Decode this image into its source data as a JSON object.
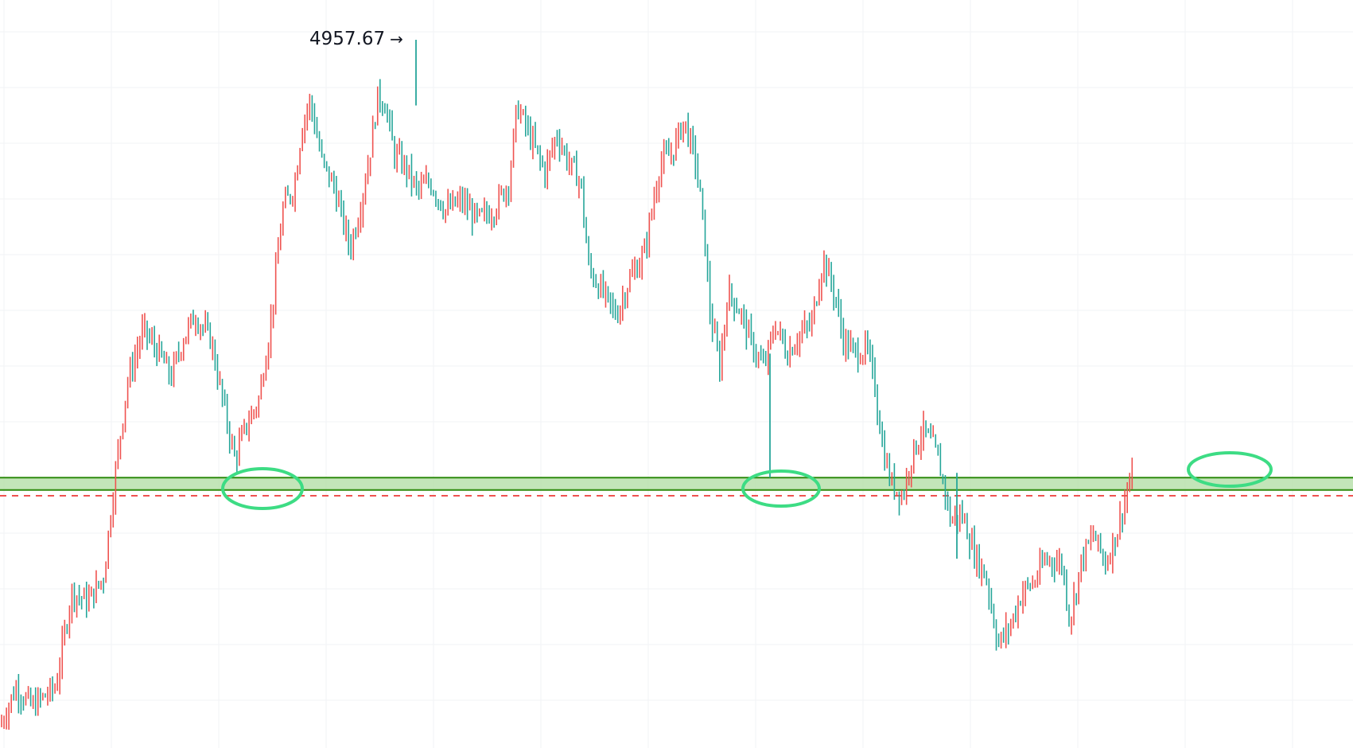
{
  "chart_data": {
    "type": "ohlc",
    "title": "",
    "xlabel": "",
    "ylabel": "",
    "ylim": [
      3500,
      5050
    ],
    "grid": true,
    "colors": {
      "up": "#ef5350",
      "down": "#26a69a",
      "support_zone_fill": "#b9e0ad",
      "support_zone_line": "#2e8b0e",
      "dashed_line": "#ef5350",
      "circle": "#3ddc84"
    },
    "peak": {
      "label": "4957.67",
      "value": 4957.67,
      "arrow_icon": "right-arrow-icon"
    },
    "support_zone": {
      "low": 4014,
      "high": 4040
    },
    "dashed_level": 4002,
    "highlight_circles": [
      {
        "name": "touch-1",
        "center_value": 4017
      },
      {
        "name": "touch-2",
        "center_value": 4017
      },
      {
        "name": "retest",
        "center_value": 4057
      }
    ],
    "series_anchors": {
      "description_free": true,
      "points": [
        [
          0,
          3520
        ],
        [
          20,
          3600
        ],
        [
          40,
          3560
        ],
        [
          70,
          3600
        ],
        [
          90,
          3800
        ],
        [
          110,
          3780
        ],
        [
          130,
          3830
        ],
        [
          145,
          4050
        ],
        [
          160,
          4240
        ],
        [
          180,
          4350
        ],
        [
          200,
          4300
        ],
        [
          215,
          4250
        ],
        [
          230,
          4330
        ],
        [
          245,
          4380
        ],
        [
          265,
          4330
        ],
        [
          280,
          4200
        ],
        [
          295,
          4080
        ],
        [
          310,
          4150
        ],
        [
          325,
          4200
        ],
        [
          340,
          4360
        ],
        [
          355,
          4600
        ],
        [
          370,
          4650
        ],
        [
          380,
          4780
        ],
        [
          390,
          4830
        ],
        [
          405,
          4700
        ],
        [
          420,
          4650
        ],
        [
          440,
          4520
        ],
        [
          452,
          4600
        ],
        [
          465,
          4720
        ],
        [
          475,
          4840
        ],
        [
          485,
          4820
        ],
        [
          495,
          4720
        ],
        [
          510,
          4690
        ],
        [
          525,
          4640
        ],
        [
          540,
          4660
        ],
        [
          560,
          4600
        ],
        [
          580,
          4620
        ],
        [
          600,
          4580
        ],
        [
          620,
          4600
        ],
        [
          640,
          4660
        ],
        [
          650,
          4820
        ],
        [
          665,
          4760
        ],
        [
          685,
          4680
        ],
        [
          700,
          4760
        ],
        [
          715,
          4700
        ],
        [
          730,
          4660
        ],
        [
          740,
          4480
        ],
        [
          760,
          4420
        ],
        [
          775,
          4380
        ],
        [
          790,
          4450
        ],
        [
          810,
          4510
        ],
        [
          830,
          4700
        ],
        [
          845,
          4720
        ],
        [
          860,
          4790
        ],
        [
          875,
          4700
        ],
        [
          885,
          4560
        ],
        [
          893,
          4380
        ],
        [
          905,
          4270
        ],
        [
          915,
          4430
        ],
        [
          930,
          4390
        ],
        [
          945,
          4320
        ],
        [
          960,
          4270
        ],
        [
          975,
          4360
        ],
        [
          990,
          4300
        ],
        [
          1005,
          4340
        ],
        [
          1020,
          4360
        ],
        [
          1035,
          4500
        ],
        [
          1050,
          4420
        ],
        [
          1060,
          4330
        ],
        [
          1075,
          4300
        ],
        [
          1090,
          4310
        ],
        [
          1100,
          4230
        ],
        [
          1110,
          4100
        ],
        [
          1120,
          4030
        ],
        [
          1135,
          4000
        ],
        [
          1145,
          4080
        ],
        [
          1160,
          4140
        ],
        [
          1175,
          4100
        ],
        [
          1185,
          4040
        ],
        [
          1195,
          3950
        ],
        [
          1210,
          3960
        ],
        [
          1225,
          3880
        ],
        [
          1240,
          3830
        ],
        [
          1255,
          3690
        ],
        [
          1270,
          3730
        ],
        [
          1285,
          3800
        ],
        [
          1300,
          3820
        ],
        [
          1315,
          3870
        ],
        [
          1335,
          3860
        ],
        [
          1345,
          3740
        ],
        [
          1360,
          3870
        ],
        [
          1375,
          3920
        ],
        [
          1390,
          3860
        ],
        [
          1405,
          3930
        ],
        [
          1418,
          4020
        ],
        [
          1425,
          4040
        ]
      ]
    }
  }
}
